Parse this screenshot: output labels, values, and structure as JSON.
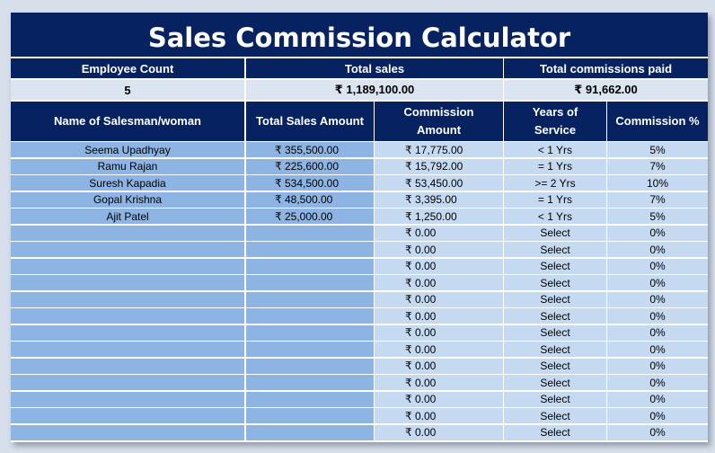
{
  "title": "Sales Commission Calculator",
  "summary": {
    "employee_count_label": "Employee Count",
    "employee_count": "5",
    "total_sales_label": "Total sales",
    "total_sales": "₹ 1,189,100.00",
    "total_commissions_label": "Total commissions paid",
    "total_commissions": "₹ 91,662.00"
  },
  "columns": {
    "name": "Name of Salesman/woman",
    "sales": "Total Sales Amount",
    "commission": "Commission Amount",
    "years": "Years of Service",
    "pct": "Commission %"
  },
  "rows": [
    {
      "name": "Seema Upadhyay",
      "sales": "₹ 355,500.00",
      "commission": "₹ 17,775.00",
      "years": "< 1 Yrs",
      "pct": "5%"
    },
    {
      "name": "Ramu Rajan",
      "sales": "₹ 225,600.00",
      "commission": "₹ 15,792.00",
      "years": "= 1 Yrs",
      "pct": "7%"
    },
    {
      "name": "Suresh Kapadia",
      "sales": "₹ 534,500.00",
      "commission": "₹ 53,450.00",
      "years": ">= 2 Yrs",
      "pct": "10%"
    },
    {
      "name": "Gopal Krishna",
      "sales": "₹ 48,500.00",
      "commission": "₹ 3,395.00",
      "years": "= 1 Yrs",
      "pct": "7%"
    },
    {
      "name": "Ajit Patel",
      "sales": "₹ 25,000.00",
      "commission": "₹ 1,250.00",
      "years": "< 1 Yrs",
      "pct": "5%"
    },
    {
      "name": "",
      "sales": "",
      "commission": "₹ 0.00",
      "years": "Select",
      "pct": "0%"
    },
    {
      "name": "",
      "sales": "",
      "commission": "₹ 0.00",
      "years": "Select",
      "pct": "0%"
    },
    {
      "name": "",
      "sales": "",
      "commission": "₹ 0.00",
      "years": "Select",
      "pct": "0%"
    },
    {
      "name": "",
      "sales": "",
      "commission": "₹ 0.00",
      "years": "Select",
      "pct": "0%"
    },
    {
      "name": "",
      "sales": "",
      "commission": "₹ 0.00",
      "years": "Select",
      "pct": "0%"
    },
    {
      "name": "",
      "sales": "",
      "commission": "₹ 0.00",
      "years": "Select",
      "pct": "0%"
    },
    {
      "name": "",
      "sales": "",
      "commission": "₹ 0.00",
      "years": "Select",
      "pct": "0%"
    },
    {
      "name": "",
      "sales": "",
      "commission": "₹ 0.00",
      "years": "Select",
      "pct": "0%"
    },
    {
      "name": "",
      "sales": "",
      "commission": "₹ 0.00",
      "years": "Select",
      "pct": "0%"
    },
    {
      "name": "",
      "sales": "",
      "commission": "₹ 0.00",
      "years": "Select",
      "pct": "0%"
    },
    {
      "name": "",
      "sales": "",
      "commission": "₹ 0.00",
      "years": "Select",
      "pct": "0%"
    },
    {
      "name": "",
      "sales": "",
      "commission": "₹ 0.00",
      "years": "Select",
      "pct": "0%"
    },
    {
      "name": "",
      "sales": "",
      "commission": "₹ 0.00",
      "years": "Select",
      "pct": "0%"
    }
  ]
}
